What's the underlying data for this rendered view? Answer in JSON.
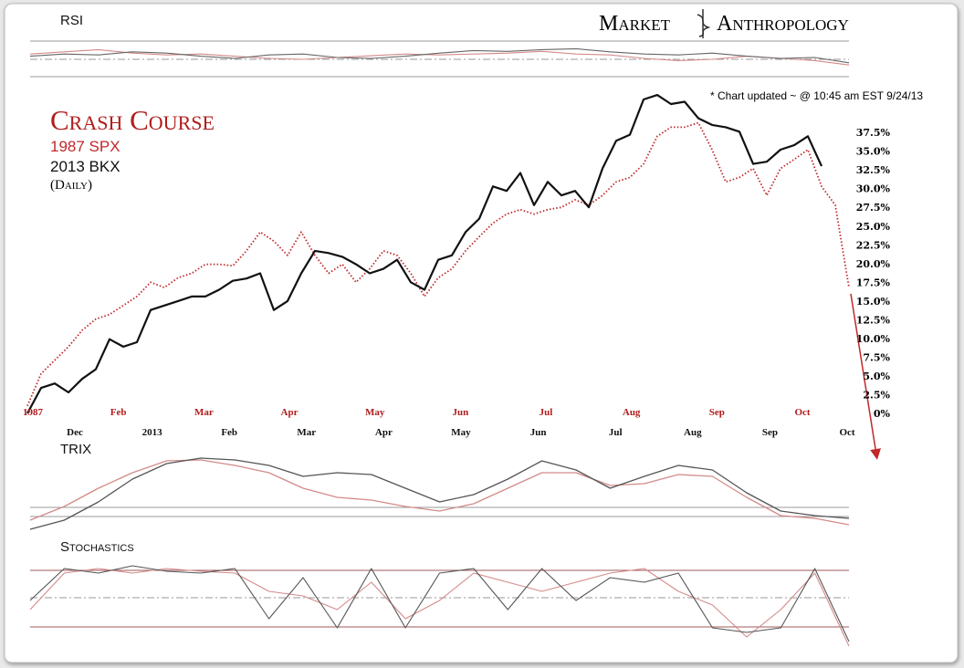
{
  "header": {
    "brand_left": "Market",
    "brand_right": "Anthropology",
    "note": "* Chart updated ~ @ 10:45 am EST 9/24/13"
  },
  "chart_data": [
    {
      "type": "line",
      "title": "Crash Course",
      "annotation": "(Daily)",
      "ylim": [
        0,
        43
      ],
      "yticks": [
        {
          "value": 0,
          "label": "0%"
        },
        {
          "value": 2.5,
          "label": "2.5%"
        },
        {
          "value": 5,
          "label": "5.0%"
        },
        {
          "value": 7.5,
          "label": "7.5%"
        },
        {
          "value": 10,
          "label": "10.0%"
        },
        {
          "value": 12.5,
          "label": "12.5%"
        },
        {
          "value": 15,
          "label": "15.0%"
        },
        {
          "value": 17.5,
          "label": "17.5%"
        },
        {
          "value": 20,
          "label": "20.0%"
        },
        {
          "value": 22.5,
          "label": "22.5%"
        },
        {
          "value": 25,
          "label": "25.0%"
        },
        {
          "value": 27.5,
          "label": "27.5%"
        },
        {
          "value": 30,
          "label": "30.0%"
        },
        {
          "value": 32.5,
          "label": "32.5%"
        },
        {
          "value": 35,
          "label": "35.0%"
        },
        {
          "value": 37.5,
          "label": "37.5%"
        }
      ],
      "x_axes": [
        {
          "color": "#b01c1c",
          "labels": [
            "1987",
            "Feb",
            "Mar",
            "Apr",
            "May",
            "Jun",
            "Jul",
            "Aug",
            "Sep",
            "Oct"
          ]
        },
        {
          "color": "#111111",
          "labels": [
            "Dec",
            "2013",
            "Feb",
            "Mar",
            "Apr",
            "May",
            "Jun",
            "Jul",
            "Aug",
            "Sep",
            "Oct"
          ]
        }
      ],
      "series": [
        {
          "name": "1987 SPX",
          "color": "#c0282a",
          "style": "dotted",
          "values": [
            1,
            5.3,
            7.1,
            8.9,
            11.1,
            12.6,
            13.2,
            14.4,
            15.6,
            17.5,
            16.8,
            18.1,
            18.7,
            19.9,
            19.9,
            19.7,
            21.7,
            24.2,
            23,
            21.1,
            24.2,
            21.1,
            18.7,
            19.9,
            17.5,
            19.3,
            21.7,
            21.1,
            18.7,
            15.6,
            18.1,
            19.3,
            21.7,
            23.6,
            25.4,
            26.6,
            27.2,
            26.6,
            27.2,
            27.5,
            28.5,
            27.8,
            29.1,
            30.9,
            31.5,
            33.3,
            37,
            38.2,
            38.2,
            38.8,
            35.2,
            30.9,
            31.5,
            32.7,
            29.1,
            32.7,
            33.9,
            35.2,
            30.3,
            27.8,
            16.8
          ]
        },
        {
          "name": "2013 BKX",
          "color": "#111111",
          "style": "solid",
          "values": [
            0,
            3.4,
            4,
            2.8,
            4.6,
            5.9,
            9.9,
            8.9,
            9.5,
            13.8,
            14.4,
            15,
            15.6,
            15.6,
            16.5,
            17.7,
            18,
            18.7,
            13.8,
            15,
            18.7,
            21.7,
            21.4,
            20.9,
            19.9,
            18.7,
            19.3,
            20.5,
            17.5,
            16.5,
            20.5,
            21.1,
            24.2,
            26,
            30.3,
            29.7,
            32.1,
            27.8,
            30.9,
            29.1,
            29.7,
            27.5,
            32.7,
            36.4,
            37.2,
            41.9,
            42.5,
            41.3,
            41.6,
            39.4,
            38.5,
            38.2,
            37.6,
            33.3,
            33.6,
            35.2,
            35.8,
            37,
            33,
            null,
            null
          ]
        }
      ]
    },
    {
      "type": "line",
      "title": "RSI",
      "ylim": [
        0,
        100
      ],
      "series": [
        {
          "color": "#d48a8a",
          "style": "solid",
          "values": [
            60,
            65,
            70,
            62,
            58,
            60,
            55,
            50,
            48,
            52,
            56,
            60,
            58,
            60,
            62,
            66,
            60,
            58,
            50,
            45,
            48,
            55,
            50,
            45,
            35
          ]
        },
        {
          "color": "#666666",
          "style": "solid",
          "values": [
            55,
            60,
            58,
            65,
            62,
            55,
            50,
            58,
            60,
            52,
            50,
            55,
            62,
            68,
            66,
            70,
            72,
            65,
            60,
            58,
            62,
            55,
            50,
            52,
            40
          ]
        }
      ]
    },
    {
      "type": "line",
      "title": "TRIX",
      "ylim": [
        0,
        100
      ],
      "series": [
        {
          "color": "#d48a8a",
          "style": "solid",
          "values": [
            20,
            35,
            55,
            72,
            85,
            86,
            80,
            72,
            55,
            45,
            42,
            35,
            30,
            38,
            55,
            72,
            72,
            58,
            60,
            70,
            68,
            45,
            25,
            22,
            15
          ]
        },
        {
          "color": "#555555",
          "style": "solid",
          "values": [
            10,
            20,
            40,
            65,
            82,
            88,
            86,
            80,
            68,
            72,
            70,
            55,
            40,
            48,
            65,
            85,
            75,
            55,
            68,
            80,
            75,
            50,
            30,
            25,
            22
          ]
        }
      ]
    },
    {
      "type": "line",
      "title": "Stochastics",
      "ylim": [
        0,
        100
      ],
      "series": [
        {
          "color": "#d48a8a",
          "style": "solid",
          "values": [
            40,
            80,
            85,
            80,
            85,
            82,
            80,
            60,
            55,
            40,
            70,
            30,
            50,
            80,
            70,
            60,
            70,
            80,
            85,
            60,
            45,
            10,
            40,
            80,
            0
          ]
        },
        {
          "color": "#555555",
          "style": "solid",
          "values": [
            50,
            85,
            80,
            88,
            82,
            80,
            85,
            30,
            75,
            20,
            85,
            20,
            80,
            85,
            40,
            85,
            50,
            75,
            70,
            80,
            20,
            15,
            20,
            85,
            5
          ]
        }
      ]
    }
  ]
}
